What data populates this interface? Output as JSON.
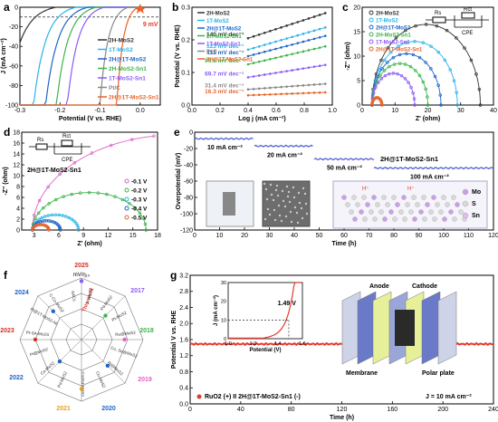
{
  "colors": {
    "2H-MoS2": "#333333",
    "1T-MoS2": "#2bb3e8",
    "2H@1T-MoS2": "#1e64c8",
    "2H-MoS2-Sn1": "#3cb44b",
    "1T-MoS2-Sn1": "#8b5cf6",
    "Pt/C": "#888888",
    "2H@1T-MoS2-Sn1": "#e8642a",
    "red": "#e43a2c",
    "pink": "#e060c8"
  },
  "panels": {
    "a": {
      "letter": "a",
      "xlabel": "Potential (V vs. RHE)",
      "ylabel": "J (mA cm⁻²)",
      "annotation": "9 mV"
    },
    "b": {
      "letter": "b",
      "xlabel": "Log j (mA cm⁻²)",
      "ylabel": "Potential (V vs. RHE)"
    },
    "c": {
      "letter": "c",
      "xlabel": "Z' (ohm)",
      "ylabel": "-Z'' (ohm)",
      "circuit": {
        "rs": "Rs",
        "rct": "Rct",
        "cpe": "CPE"
      }
    },
    "d": {
      "letter": "d",
      "xlabel": "Z' (ohm)",
      "ylabel": "-Z'' (ohm)",
      "sample": "2H@1T-MoS2-Sn1",
      "circuit": {
        "rs": "Rs",
        "rct": "Rct",
        "cpe": "CPE"
      }
    },
    "e": {
      "letter": "e",
      "xlabel": "Time (h)",
      "ylabel": "Overpotential (mV)",
      "sample": "2H@1T-MoS2-Sn1",
      "steps": [
        "10 mA cm⁻²",
        "20 mA cm⁻²",
        "50 mA cm⁻²",
        "100 mA cm⁻²"
      ],
      "legend": [
        "Mo",
        "S",
        "Sn"
      ],
      "proton": "H⁺"
    },
    "f": {
      "letter": "f",
      "center": "mV/η₁₀",
      "this_work": "This work",
      "years": [
        "2025",
        "2017",
        "2018",
        "2019",
        "2020",
        "2021",
        "2022",
        "2023",
        "2024"
      ],
      "materials": [
        "Pt-MoS2",
        "Pd-MoS2",
        "Pt-MoS2",
        "Ru@MoS2",
        "Co, Se@MoS2",
        "Ni@MoS2",
        "Co-MoS2",
        "Co3S4-MoS2",
        "Pd-MoS2",
        "Co-MoS2",
        "Pt@MoS2",
        "Pt-SA-Mo2S",
        "Pt@1T-MoS2-Ni",
        "C-Co-MoS2",
        "SACs"
      ]
    },
    "g": {
      "letter": "g",
      "xlabel": "Time (h)",
      "ylabel": "Potential V vs. RHE",
      "legend": "RuO2 (+) II 2H@1T-MoS2-Sn1 (-)",
      "current": "J = 10 mA cm⁻²",
      "inset": {
        "xlabel": "Potential (V)",
        "ylabel": "J (mA cm⁻²)",
        "annotation": "1.49 V"
      },
      "labels": {
        "anode": "Anode",
        "cathode": "Cathode",
        "membrane": "Membrane",
        "plate": "Polar plate"
      }
    }
  },
  "chart_data": [
    {
      "panel": "a",
      "type": "line",
      "xlabel": "Potential (V vs. RHE)",
      "ylabel": "J (mA cm⁻²)",
      "xlim": [
        -0.3,
        0.05
      ],
      "ylim": [
        -100,
        0
      ],
      "xticks": [
        -0.3,
        -0.2,
        -0.1,
        0.0
      ],
      "yticks": [
        -100,
        -80,
        -60,
        -40,
        -20,
        0
      ],
      "legend_position": "center-right",
      "series": [
        {
          "name": "2H-MoS2",
          "onset": -0.21,
          "k": 0.035
        },
        {
          "name": "1T-MoS2",
          "onset": -0.16,
          "k": 0.03
        },
        {
          "name": "2H@1T-MoS2",
          "onset": -0.13,
          "k": 0.03
        },
        {
          "name": "2H-MoS2-Sn1",
          "onset": -0.11,
          "k": 0.028
        },
        {
          "name": "1T-MoS2-Sn1",
          "onset": -0.09,
          "k": 0.026
        },
        {
          "name": "Pt/C",
          "onset": -0.03,
          "k": 0.02
        },
        {
          "name": "2H@1T-MoS2-Sn1",
          "onset": -0.005,
          "k": 0.015
        }
      ]
    },
    {
      "panel": "b",
      "type": "line",
      "xlabel": "Log j (mA cm⁻²)",
      "ylabel": "Potential (V vs. RHE)",
      "xlim": [
        0.0,
        1.0
      ],
      "ylim": [
        0.0,
        0.3
      ],
      "xticks": [
        0.0,
        0.2,
        0.4,
        0.6,
        0.8,
        1.0
      ],
      "yticks": [
        0.0,
        0.1,
        0.2,
        0.3
      ],
      "series": [
        {
          "name": "2H-MoS2",
          "tafel": "140 mV dec⁻¹",
          "x": [
            0.4,
            0.95
          ],
          "y": [
            0.205,
            0.282
          ]
        },
        {
          "name": "1T-MoS2",
          "tafel": "123 mV dec⁻¹",
          "x": [
            0.4,
            0.95
          ],
          "y": [
            0.17,
            0.238
          ]
        },
        {
          "name": "2H@1T-MoS2",
          "tafel": "112 mV dec⁻¹",
          "x": [
            0.4,
            0.95
          ],
          "y": [
            0.15,
            0.212
          ]
        },
        {
          "name": "2H-MoS2-Sn1",
          "tafel": "99.6 mV dec⁻¹",
          "x": [
            0.4,
            0.95
          ],
          "y": [
            0.125,
            0.18
          ]
        },
        {
          "name": "1T-MoS2-Sn1",
          "tafel": "69.7 mV dec⁻¹",
          "x": [
            0.4,
            0.95
          ],
          "y": [
            0.085,
            0.123
          ]
        },
        {
          "name": "Pt/C",
          "tafel": "31.4 mV dec⁻¹",
          "x": [
            0.4,
            0.95
          ],
          "y": [
            0.048,
            0.065
          ]
        },
        {
          "name": "2H@1T-MoS2-Sn1",
          "tafel": "16.3 mV dec⁻¹",
          "x": [
            0.4,
            0.95
          ],
          "y": [
            0.03,
            0.039
          ]
        }
      ]
    },
    {
      "panel": "c",
      "type": "scatter",
      "xlabel": "Z' (ohm)",
      "ylabel": "-Z'' (ohm)",
      "xlim": [
        0,
        40
      ],
      "ylim": [
        0,
        20
      ],
      "xticks": [
        0,
        10,
        20,
        30,
        40
      ],
      "yticks": [
        0,
        5,
        10,
        15,
        20
      ],
      "series": [
        {
          "name": "2H-MoS2",
          "rs": 3,
          "rct": 33
        },
        {
          "name": "1T-MoS2",
          "rs": 3,
          "rct": 26
        },
        {
          "name": "2H@1T-MoS2",
          "rs": 3,
          "rct": 21
        },
        {
          "name": "2H-MoS2-Sn1",
          "rs": 3,
          "rct": 17
        },
        {
          "name": "1T-MoS2-Sn1",
          "rs": 3,
          "rct": 13
        },
        {
          "name": "2H@1T-MoS2-Sn1",
          "rs": 3,
          "rct": 3
        }
      ]
    },
    {
      "panel": "d",
      "type": "scatter",
      "xlabel": "Z' (ohm)",
      "ylabel": "-Z'' (ohm)",
      "xlim": [
        1.5,
        18
      ],
      "ylim": [
        0,
        18
      ],
      "xticks": [
        3,
        6,
        9,
        12,
        15,
        18
      ],
      "yticks": [
        0,
        2,
        4,
        6,
        8,
        10,
        12,
        14,
        16,
        18
      ],
      "legend_position": "center-right",
      "series": [
        {
          "name": "-0.1 V",
          "color": "#e060c8",
          "rs": 2.8,
          "rct": 35
        },
        {
          "name": "-0.2 V",
          "color": "#3cb44b",
          "rs": 2.8,
          "rct": 13.8
        },
        {
          "name": "-0.3 V",
          "color": "#2bb3e8",
          "rs": 2.8,
          "rct": 5.6
        },
        {
          "name": "-0.4 V",
          "color": "#1e64c8",
          "rs": 2.8,
          "rct": 3.4
        },
        {
          "name": "-0.5 V",
          "color": "#e8642a",
          "rs": 2.8,
          "rct": 2.0
        }
      ]
    },
    {
      "panel": "e",
      "type": "line",
      "xlabel": "Time (h)",
      "ylabel": "Overpotential (mV)",
      "xlim": [
        0,
        120
      ],
      "ylim": [
        -120,
        0
      ],
      "xticks": [
        0,
        10,
        20,
        30,
        40,
        50,
        60,
        70,
        80,
        90,
        100,
        110,
        120
      ],
      "yticks": [
        -120,
        -100,
        -80,
        -60,
        -40,
        -20,
        0
      ],
      "segments": [
        {
          "label": "10 mA cm⁻²",
          "x0": 0,
          "x1": 24,
          "y": -8
        },
        {
          "label": "20 mA cm⁻²",
          "x0": 24,
          "x1": 48,
          "y": -17
        },
        {
          "label": "50 mA cm⁻²",
          "x0": 48,
          "x1": 72,
          "y": -33
        },
        {
          "label": "100 mA cm⁻²",
          "x0": 72,
          "x1": 120,
          "y": -44
        }
      ]
    },
    {
      "panel": "g",
      "type": "line",
      "xlabel": "Time (h)",
      "ylabel": "Potential V vs. RHE",
      "xlim": [
        0,
        240
      ],
      "ylim": [
        0.0,
        3.2
      ],
      "xticks": [
        0,
        40,
        80,
        120,
        160,
        200,
        240
      ],
      "yticks": [
        0.0,
        0.4,
        0.8,
        1.2,
        1.6,
        2.0,
        2.4,
        2.8,
        3.2
      ],
      "series": [
        {
          "name": "RuO2 (+) II 2H@1T-MoS2-Sn1 (-)",
          "y": 1.49
        }
      ],
      "inset": {
        "xlim": [
          1.0,
          1.6
        ],
        "ylim": [
          0,
          30
        ],
        "xticks": [
          1.0,
          1.2,
          1.4,
          1.6
        ],
        "yticks": [
          0,
          10,
          20,
          30
        ],
        "onset": 1.49
      }
    }
  ]
}
